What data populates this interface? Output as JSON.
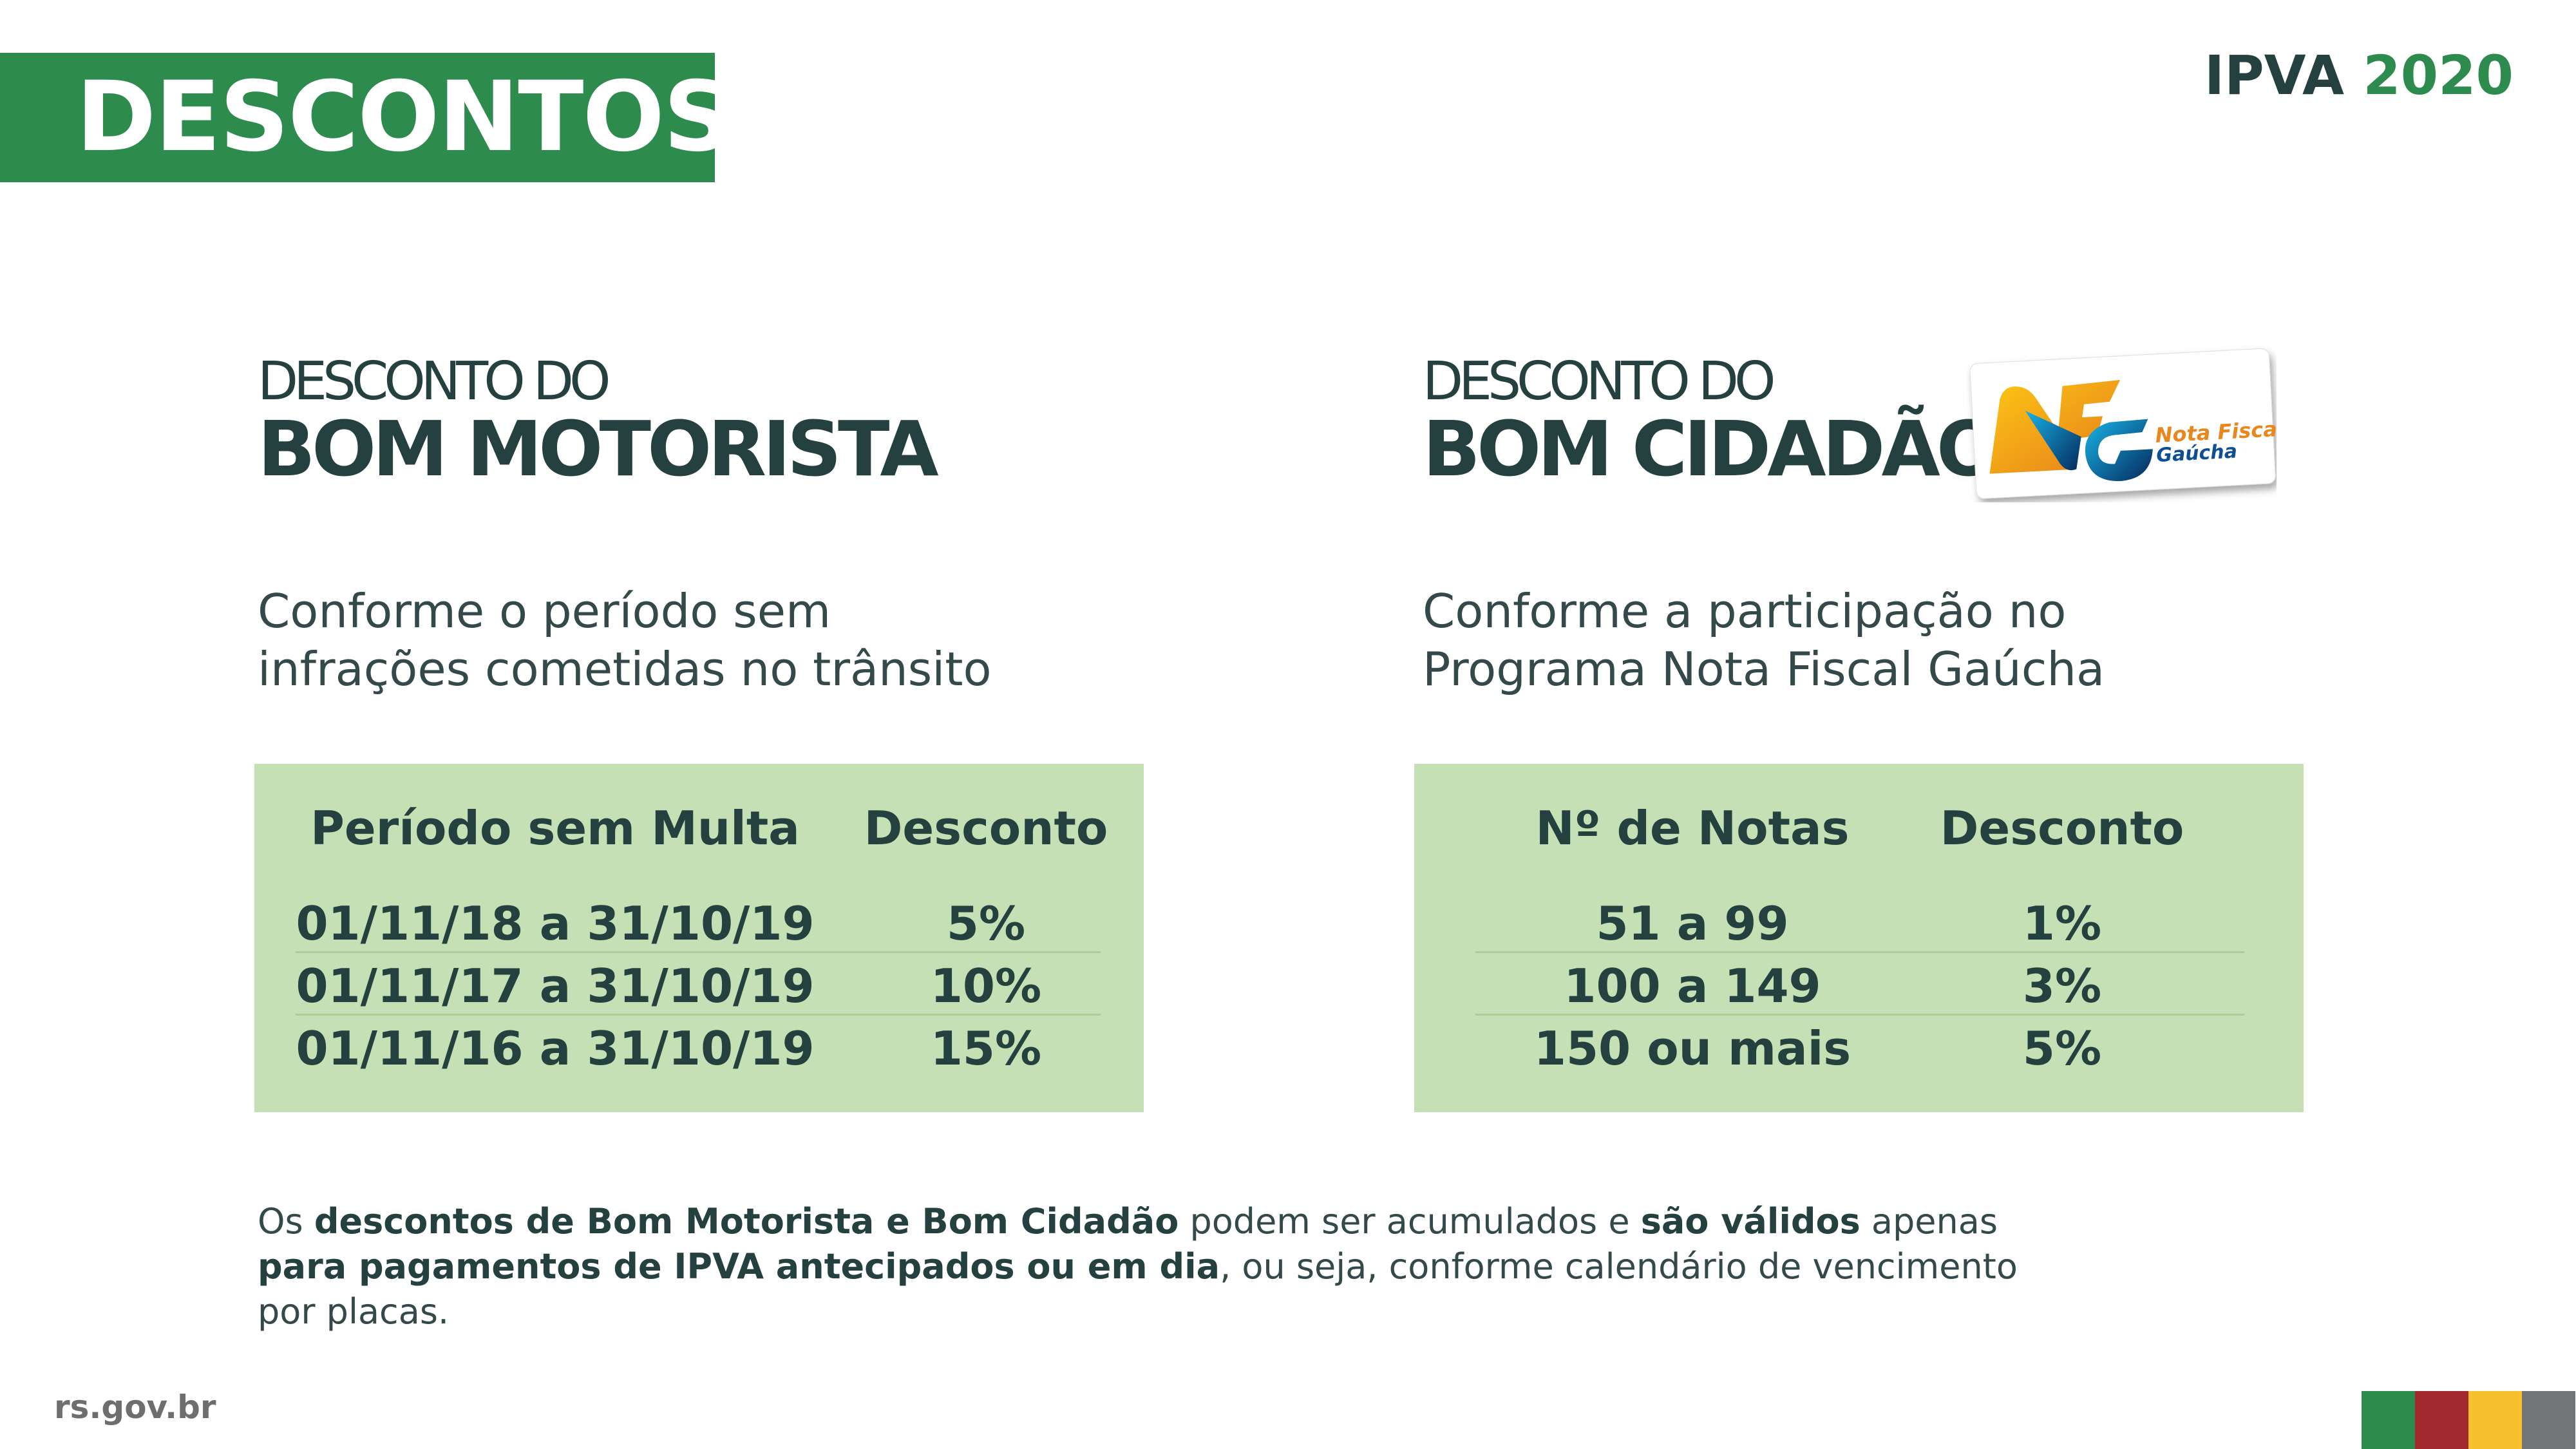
{
  "header": {
    "title": "DESCONTOS",
    "brand_prefix": "IPVA",
    "brand_year": "2020"
  },
  "left": {
    "subtitle": "DESCONTO DO",
    "title": "BOM MOTORISTA",
    "description": [
      "Conforme o período sem",
      "infrações cometidas no trânsito"
    ],
    "table": {
      "headers": [
        "Período sem Multa",
        "Desconto"
      ],
      "rows": [
        [
          "01/11/18 a 31/10/19",
          "5%"
        ],
        [
          "01/11/17 a 31/10/19",
          "10%"
        ],
        [
          "01/11/16 a 31/10/19",
          "15%"
        ]
      ]
    }
  },
  "right": {
    "subtitle": "DESCONTO DO",
    "title": "BOM CIDADÃO",
    "logo": {
      "letters": "NFG",
      "line1": "Nota Fiscal",
      "line2": "Gaúcha"
    },
    "description": [
      "Conforme a participação no",
      "Programa Nota Fiscal Gaúcha"
    ],
    "table": {
      "headers": [
        "Nº de Notas",
        "Desconto"
      ],
      "rows": [
        [
          "51 a 99",
          "1%"
        ],
        [
          "100 a 149",
          "3%"
        ],
        [
          "150 ou mais",
          "5%"
        ]
      ]
    }
  },
  "footer_note": [
    {
      "text": "Os ",
      "bold": false
    },
    {
      "text": "descontos de Bom Motorista e Bom Cidadão",
      "bold": true
    },
    {
      "text": " podem ser acumulados e ",
      "bold": false
    },
    {
      "text": "são válidos",
      "bold": true
    },
    {
      "text": " apenas ",
      "bold": false
    },
    {
      "text": "para pagamentos de IPVA antecipados ou em dia",
      "bold": true
    },
    {
      "text": ", ou seja, conforme calendário de vencimento por placas.",
      "bold": false
    }
  ],
  "site": "rs.gov.br",
  "colors": {
    "green": "#2e8b4e",
    "red": "#a0292d",
    "yellow": "#f6c02e",
    "gray": "#737476",
    "table_bg": "#c5e0b4",
    "text": "#24403f"
  }
}
